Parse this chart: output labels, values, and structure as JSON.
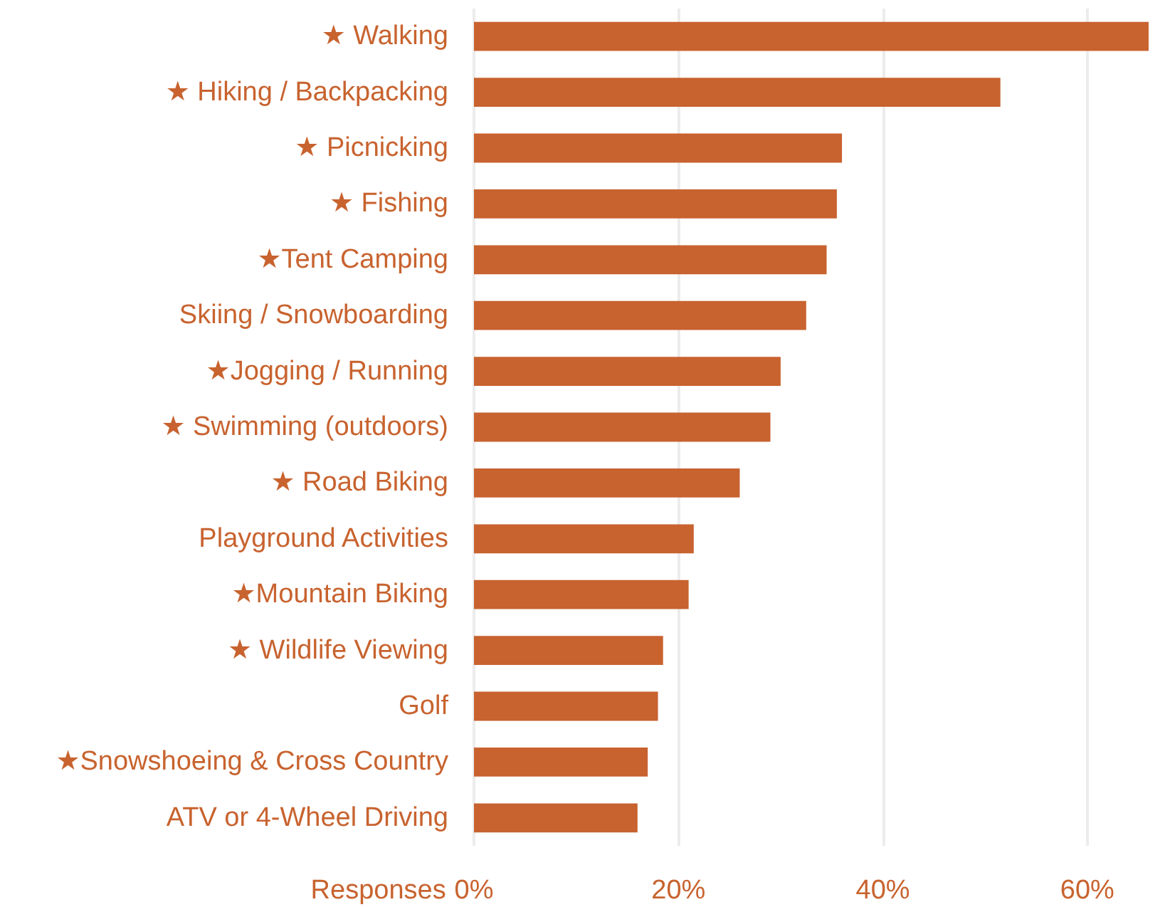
{
  "chart_data": {
    "type": "bar",
    "orientation": "horizontal",
    "categories": [
      "★ Walking",
      "★ Hiking / Backpacking",
      "★ Picnicking",
      "★ Fishing",
      "★Tent Camping",
      "Skiing / Snowboarding",
      "★Jogging / Running",
      "★ Swimming (outdoors)",
      "★ Road Biking",
      "Playground Activities",
      "★Mountain Biking",
      "★ Wildlife Viewing",
      "Golf",
      "★Snowshoeing & Cross Country",
      "ATV or 4-Wheel Driving"
    ],
    "values": [
      66,
      51.5,
      36,
      35.5,
      34.5,
      32.5,
      30,
      29,
      26,
      21.5,
      21,
      18.5,
      18,
      17,
      16
    ],
    "color": "#c8622f",
    "xlabel": "Responses",
    "xlim": [
      0,
      66
    ],
    "xticks": [
      {
        "value": 0,
        "label": "0%"
      },
      {
        "value": 20,
        "label": "20%"
      },
      {
        "value": 40,
        "label": "40%"
      },
      {
        "value": 60,
        "label": "60%"
      }
    ],
    "grid": "x"
  }
}
